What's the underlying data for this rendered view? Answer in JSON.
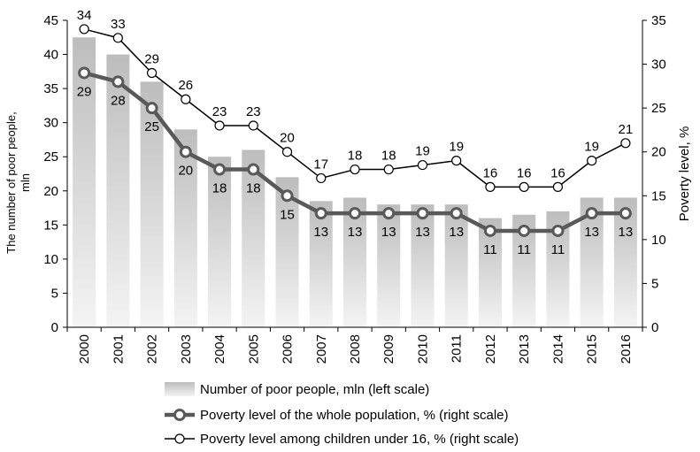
{
  "chart_data": {
    "type": "bar",
    "categories": [
      "2000",
      "2001",
      "2002",
      "2003",
      "2004",
      "2005",
      "2006",
      "2007",
      "2008",
      "2009",
      "2010",
      "2011",
      "2012",
      "2013",
      "2014",
      "2015",
      "2016"
    ],
    "y_left": {
      "label": "The number of poor people, mln",
      "label_line1": "The number of poor  people,",
      "label_line2": "mln",
      "range": [
        0,
        45
      ],
      "ticks": [
        0,
        5,
        10,
        15,
        20,
        25,
        30,
        35,
        40,
        45
      ]
    },
    "y_right": {
      "label": "Poverty level, %",
      "range": [
        0,
        35
      ],
      "ticks": [
        0,
        5,
        10,
        15,
        20,
        25,
        30,
        35
      ]
    },
    "grid": false,
    "legend_position": "bottom",
    "series": [
      {
        "name": "Number of poor people, mln (left scale)",
        "type": "bar",
        "axis": "left",
        "values": [
          42.5,
          40,
          36,
          29,
          25,
          26,
          22,
          18.5,
          19,
          18,
          18,
          18,
          16,
          16.5,
          17,
          19,
          19
        ],
        "color": "#c8c8c8"
      },
      {
        "name": "Poverty level of the whole population, % (right scale)",
        "type": "line",
        "axis": "right",
        "values": [
          29,
          28,
          25,
          20,
          18,
          18,
          15,
          13,
          13,
          13,
          13,
          13,
          11,
          11,
          11,
          13,
          13
        ],
        "labels": [
          "29",
          "28",
          "25",
          "20",
          "18",
          "18",
          "15",
          "13",
          "13",
          "13",
          "13",
          "13",
          "11",
          "11",
          "11",
          "13",
          "13"
        ],
        "color": "#595959"
      },
      {
        "name": "Poverty level among children under 16, % (right scale)",
        "type": "line",
        "axis": "right",
        "values": [
          34,
          33,
          29,
          26,
          23,
          23,
          20,
          17,
          18,
          18,
          18.5,
          19,
          16,
          16,
          16,
          19,
          21
        ],
        "labels": [
          "34",
          "33",
          "29",
          "26",
          "23",
          "23",
          "20",
          "17",
          "18",
          "18",
          "19",
          "19",
          "16",
          "16",
          "16",
          "19",
          "21"
        ],
        "color": "#000000"
      }
    ]
  }
}
